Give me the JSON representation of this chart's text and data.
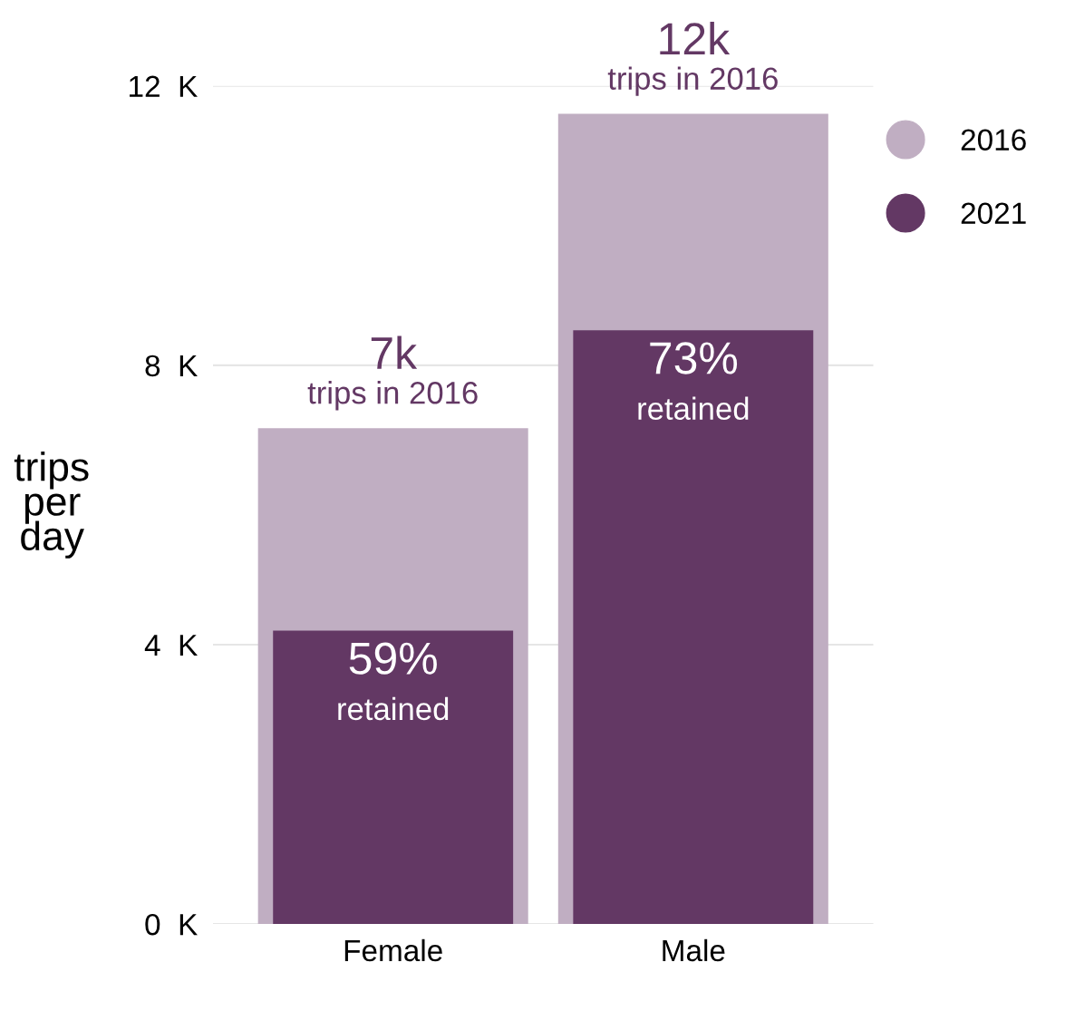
{
  "chart_data": {
    "type": "bar",
    "categories": [
      "Female",
      "Male"
    ],
    "ylabel": "trips\nper\nday",
    "series": [
      {
        "name": "2016",
        "color": "#c0aec2",
        "values": [
          7.1,
          11.6
        ]
      },
      {
        "name": "2021",
        "color": "#633864",
        "values": [
          4.2,
          8.5
        ]
      }
    ],
    "annotations": [
      {
        "text": "7k\ntrips in 2016",
        "x": "Female",
        "y": 7.1
      },
      {
        "text": "12k\ntrips in 2016",
        "x": "Male",
        "y": 11.6
      },
      {
        "text": "59%\nretained",
        "x": "Female",
        "y": 4.2
      },
      {
        "text": "73%\nretained",
        "x": "Male",
        "y": 8.5
      }
    ],
    "ylim": [
      0,
      12
    ],
    "yticks": [
      {
        "value": 0,
        "label": "0  K"
      },
      {
        "value": 4,
        "label": "4  K"
      },
      {
        "value": 8,
        "label": "8  K"
      },
      {
        "value": 12,
        "label": "12  K"
      }
    ],
    "grid": "y",
    "legend": "top right"
  }
}
